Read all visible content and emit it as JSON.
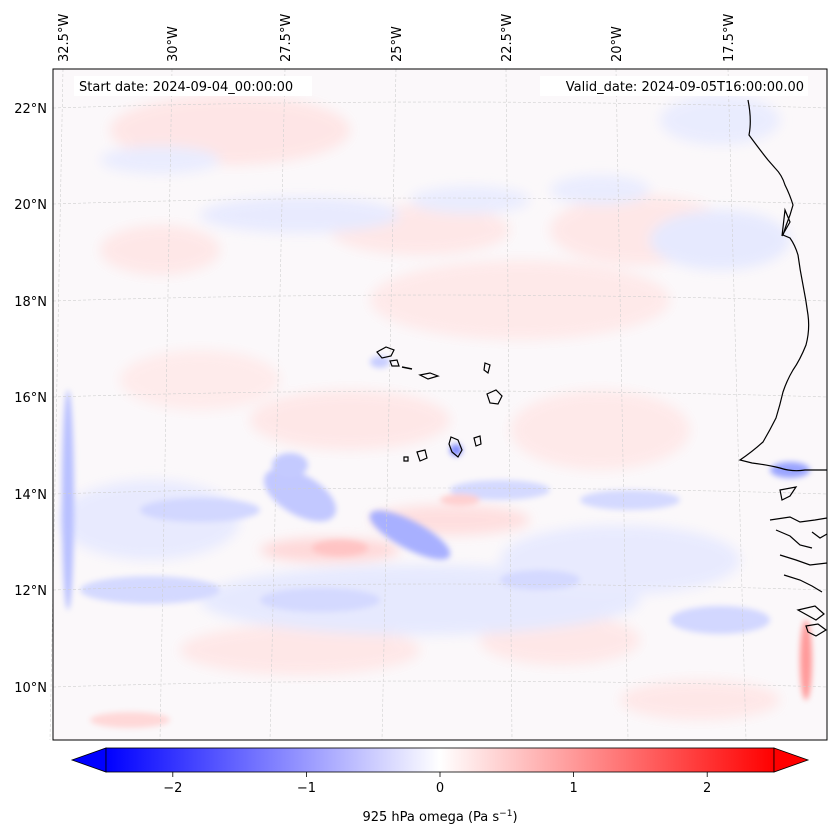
{
  "header": {
    "start_date": "Start date: 2024-09-04_00:00:00",
    "valid_date": "Valid_date: 2024-09-05T16:00:00.00"
  },
  "map": {
    "field": "925 hPa omega",
    "lon_labels": [
      "32.5°W",
      "30°W",
      "27.5°W",
      "25°W",
      "22.5°W",
      "20°W",
      "17.5°W"
    ],
    "lat_labels": [
      "22°N",
      "20°N",
      "18°N",
      "16°N",
      "14°N",
      "12°N",
      "10°N"
    ],
    "gridlines": true
  },
  "colorbar": {
    "min": -2.5,
    "max": 2.5,
    "ticks": [
      "−2",
      "−1",
      "0",
      "1",
      "2"
    ],
    "tick_values": [
      -2,
      -1,
      0,
      1,
      2
    ],
    "label": "925 hPa omega (Pa s",
    "label_exp": "−1",
    "label_close": ")",
    "colors": {
      "negative": "#0000ff",
      "zero": "#ffffff",
      "positive": "#ff0000"
    },
    "extend": "both"
  }
}
